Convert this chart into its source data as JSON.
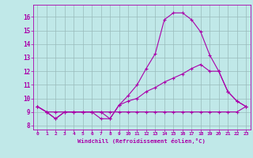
{
  "background_color": "#c0e8e8",
  "line_color": "#aa00aa",
  "grid_color": "#99bbbb",
  "xlabel": "Windchill (Refroidissement éolien,°C)",
  "xlim": [
    -0.5,
    23.5
  ],
  "ylim": [
    7.7,
    16.9
  ],
  "yticks": [
    8,
    9,
    10,
    11,
    12,
    13,
    14,
    15,
    16
  ],
  "xticks": [
    0,
    1,
    2,
    3,
    4,
    5,
    6,
    7,
    8,
    9,
    10,
    11,
    12,
    13,
    14,
    15,
    16,
    17,
    18,
    19,
    20,
    21,
    22,
    23
  ],
  "line1_x": [
    0,
    1,
    2,
    3,
    4,
    5,
    6,
    7,
    8,
    9,
    10,
    11,
    12,
    13,
    14,
    15,
    16,
    17,
    18,
    19,
    20,
    21,
    22,
    23
  ],
  "line1_y": [
    9.4,
    9.0,
    8.5,
    9.0,
    9.0,
    9.0,
    9.0,
    9.0,
    8.5,
    9.5,
    10.2,
    11.0,
    12.2,
    13.3,
    15.8,
    16.3,
    16.3,
    15.8,
    14.9,
    13.2,
    12.0,
    10.5,
    9.8,
    9.4
  ],
  "line2_x": [
    0,
    1,
    2,
    3,
    4,
    5,
    6,
    7,
    8,
    9,
    10,
    11,
    12,
    13,
    14,
    15,
    16,
    17,
    18,
    19,
    20,
    21,
    22,
    23
  ],
  "line2_y": [
    9.4,
    9.0,
    8.5,
    9.0,
    9.0,
    9.0,
    9.0,
    8.5,
    8.5,
    9.5,
    9.8,
    10.0,
    10.5,
    10.8,
    11.2,
    11.5,
    11.8,
    12.2,
    12.5,
    12.0,
    12.0,
    10.5,
    9.8,
    9.4
  ],
  "line3_x": [
    0,
    1,
    2,
    3,
    4,
    5,
    6,
    7,
    8,
    9,
    10,
    11,
    12,
    13,
    14,
    15,
    16,
    17,
    18,
    19,
    20,
    21,
    22,
    23
  ],
  "line3_y": [
    9.4,
    9.0,
    9.0,
    9.0,
    9.0,
    9.0,
    9.0,
    9.0,
    9.0,
    9.0,
    9.0,
    9.0,
    9.0,
    9.0,
    9.0,
    9.0,
    9.0,
    9.0,
    9.0,
    9.0,
    9.0,
    9.0,
    9.0,
    9.4
  ]
}
